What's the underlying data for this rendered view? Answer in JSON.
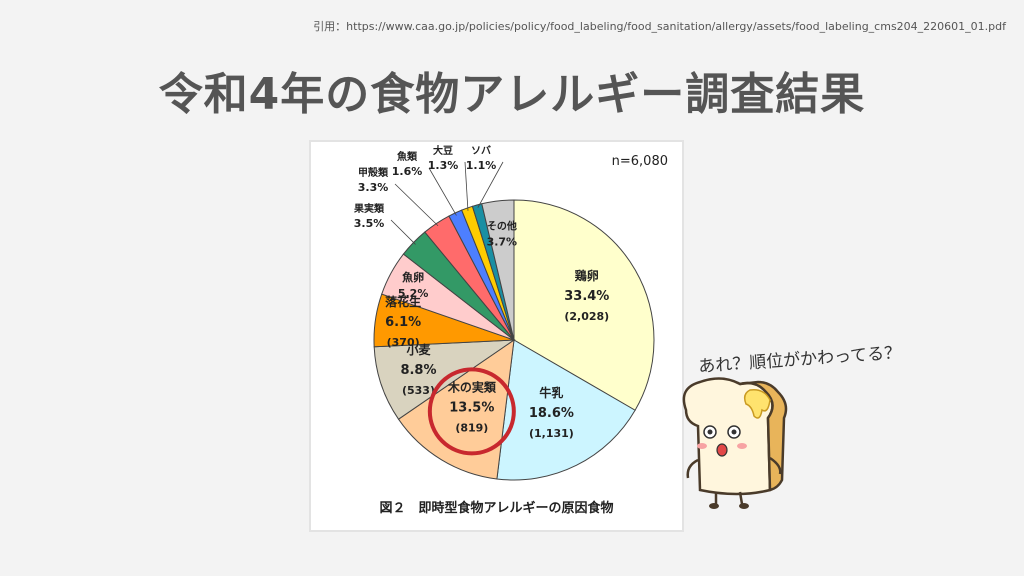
{
  "citation": "引用：https://www.caa.go.jp/policies/policy/food_labeling/food_sanitation/allergy/assets/food_labeling_cms204_220601_01.pdf",
  "title": "令和4年の食物アレルギー調査結果",
  "speech": "あれ？順位がかわってる？",
  "chart_data": {
    "type": "pie",
    "sample": "n=6,080",
    "caption": "図２　即時型食物アレルギーの原因食物",
    "slices": [
      {
        "name": "鶏卵",
        "pct_label": "33.4%",
        "count_label": "(2,028)",
        "value": 33.4,
        "color": "#ffffcc"
      },
      {
        "name": "牛乳",
        "pct_label": "18.6%",
        "count_label": "(1,131)",
        "value": 18.6,
        "color": "#ccf5ff"
      },
      {
        "name": "木の実類",
        "pct_label": "13.5%",
        "count_label": "(819)",
        "value": 13.5,
        "color": "#ffcc99"
      },
      {
        "name": "小麦",
        "pct_label": "8.8%",
        "count_label": "(533)",
        "value": 8.8,
        "color": "#d9d3bf"
      },
      {
        "name": "落花生",
        "pct_label": "6.1%",
        "count_label": "(370)",
        "value": 6.1,
        "color": "#ff9900"
      },
      {
        "name": "魚卵",
        "pct_label": "5.2%",
        "count_label": "",
        "value": 5.2,
        "color": "#ffcccc"
      },
      {
        "name": "果実類",
        "pct_label": "3.5%",
        "count_label": "",
        "value": 3.5,
        "color": "#339966"
      },
      {
        "name": "甲殻類",
        "pct_label": "3.3%",
        "count_label": "",
        "value": 3.3,
        "color": "#ff6b6b"
      },
      {
        "name": "魚類",
        "pct_label": "1.6%",
        "count_label": "",
        "value": 1.6,
        "color": "#4d7fff"
      },
      {
        "name": "大豆",
        "pct_label": "1.3%",
        "count_label": "",
        "value": 1.3,
        "color": "#ffcc00"
      },
      {
        "name": "ソバ",
        "pct_label": "1.1%",
        "count_label": "",
        "value": 1.1,
        "color": "#1a8fa3"
      },
      {
        "name": "その他",
        "pct_label": "3.7%",
        "count_label": "",
        "value": 3.7,
        "color": "#cccccc"
      }
    ],
    "highlighted_slice": "木の実類"
  }
}
